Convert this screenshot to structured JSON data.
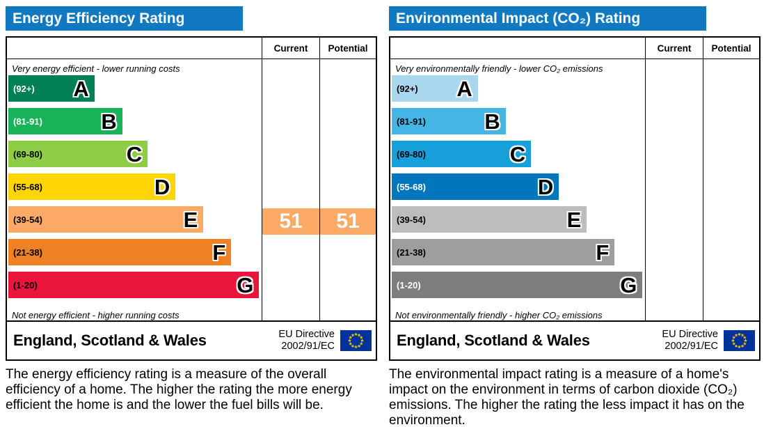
{
  "panels": [
    {
      "title": "Energy Efficiency Rating",
      "col_current": "Current",
      "col_potential": "Potential",
      "top_note": "Very energy efficient - lower running costs",
      "bottom_note": "Not energy efficient - higher running costs",
      "bands": [
        {
          "range": "(92+)",
          "letter": "A",
          "color": "#008054",
          "label_color": "#ffffff",
          "width_pct": 34
        },
        {
          "range": "(81-91)",
          "letter": "B",
          "color": "#19b459",
          "label_color": "#ffffff",
          "width_pct": 45
        },
        {
          "range": "(69-80)",
          "letter": "C",
          "color": "#8dce46",
          "label_color": "#000000",
          "width_pct": 55
        },
        {
          "range": "(55-68)",
          "letter": "D",
          "color": "#ffd500",
          "label_color": "#000000",
          "width_pct": 66
        },
        {
          "range": "(39-54)",
          "letter": "E",
          "color": "#fcaa65",
          "label_color": "#000000",
          "width_pct": 77
        },
        {
          "range": "(21-38)",
          "letter": "F",
          "color": "#ef8023",
          "label_color": "#000000",
          "width_pct": 88
        },
        {
          "range": "(1-20)",
          "letter": "G",
          "color": "#e9153b",
          "label_color": "#000000",
          "width_pct": 99
        }
      ],
      "current": {
        "value": "51",
        "band_index": 4,
        "color": "#fcaa65",
        "text_color": "#ffffff"
      },
      "potential": {
        "value": "51",
        "band_index": 4,
        "color": "#fcaa65",
        "text_color": "#ffffff"
      },
      "footer_region": "England, Scotland & Wales",
      "footer_directive_line1": "EU Directive",
      "footer_directive_line2": "2002/91/EC",
      "description": "The energy efficiency rating is a measure of the overall efficiency of a home. The higher the rating the more energy efficient the home is and the lower the fuel bills will be."
    },
    {
      "title": "Environmental Impact (CO₂) Rating",
      "col_current": "Current",
      "col_potential": "Potential",
      "top_note": "Very environmentally friendly - lower CO₂ emissions",
      "bottom_note": "Not environmentally friendly - higher CO₂ emissions",
      "bands": [
        {
          "range": "(92+)",
          "letter": "A",
          "color": "#a9d7ee",
          "label_color": "#000000",
          "width_pct": 34
        },
        {
          "range": "(81-91)",
          "letter": "B",
          "color": "#43b6e6",
          "label_color": "#000000",
          "width_pct": 45
        },
        {
          "range": "(69-80)",
          "letter": "C",
          "color": "#169fd8",
          "label_color": "#000000",
          "width_pct": 55
        },
        {
          "range": "(55-68)",
          "letter": "D",
          "color": "#0076bc",
          "label_color": "#ffffff",
          "width_pct": 66
        },
        {
          "range": "(39-54)",
          "letter": "E",
          "color": "#bdbdbd",
          "label_color": "#000000",
          "width_pct": 77
        },
        {
          "range": "(21-38)",
          "letter": "F",
          "color": "#9e9e9e",
          "label_color": "#000000",
          "width_pct": 88
        },
        {
          "range": "(1-20)",
          "letter": "G",
          "color": "#7d7d7d",
          "label_color": "#ffffff",
          "width_pct": 99
        }
      ],
      "current": null,
      "potential": null,
      "footer_region": "England, Scotland & Wales",
      "footer_directive_line1": "EU Directive",
      "footer_directive_line2": "2002/91/EC",
      "description": "The environmental impact rating is a measure of a home's impact on the environment in terms of carbon dioxide (CO₂) emissions. The higher the rating the less impact it has on the environment."
    }
  ],
  "colors": {
    "header_blue": "#1079c2",
    "eu_flag_blue": "#003399",
    "eu_star_gold": "#ffcc00"
  },
  "chart_data": [
    {
      "type": "bar",
      "title": "Energy Efficiency Rating",
      "categories": [
        "A (92+)",
        "B (81-91)",
        "C (69-80)",
        "D (55-68)",
        "E (39-54)",
        "F (21-38)",
        "G (1-20)"
      ],
      "band_ranges": [
        [
          92,
          100
        ],
        [
          81,
          91
        ],
        [
          69,
          80
        ],
        [
          55,
          68
        ],
        [
          39,
          54
        ],
        [
          21,
          38
        ],
        [
          1,
          20
        ]
      ],
      "current": 51,
      "potential": 51,
      "current_band": "E",
      "potential_band": "E",
      "xlabel": "",
      "ylabel": "",
      "legend": [
        "Current",
        "Potential"
      ],
      "region": "England, Scotland & Wales",
      "directive": "EU Directive 2002/91/EC"
    },
    {
      "type": "bar",
      "title": "Environmental Impact (CO₂) Rating",
      "categories": [
        "A (92+)",
        "B (81-91)",
        "C (69-80)",
        "D (55-68)",
        "E (39-54)",
        "F (21-38)",
        "G (1-20)"
      ],
      "band_ranges": [
        [
          92,
          100
        ],
        [
          81,
          91
        ],
        [
          69,
          80
        ],
        [
          55,
          68
        ],
        [
          39,
          54
        ],
        [
          21,
          38
        ],
        [
          1,
          20
        ]
      ],
      "current": null,
      "potential": null,
      "legend": [
        "Current",
        "Potential"
      ],
      "region": "England, Scotland & Wales",
      "directive": "EU Directive 2002/91/EC"
    }
  ]
}
